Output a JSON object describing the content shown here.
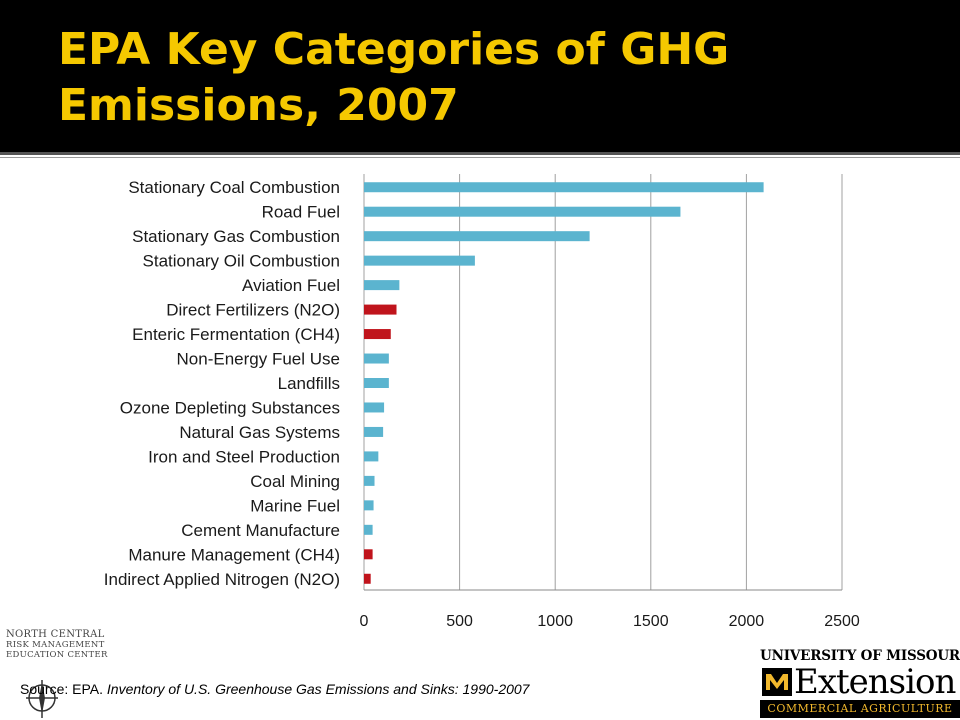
{
  "slide": {
    "title": "EPA Key Categories of GHG Emissions, 2007",
    "source_prefix": "Source: EPA. ",
    "source_italic": "Inventory of U.S. Greenhouse Gas Emissions and Sinks: 1990-2007"
  },
  "colors": {
    "title_bg": "#000000",
    "title_text": "#f5c800",
    "bar_default": "#5bb4cf",
    "bar_agriculture": "#c0141c",
    "grid": "#a0a0a0"
  },
  "chart_data": {
    "type": "bar",
    "orientation": "horizontal",
    "categories": [
      "Stationary Coal Combustion",
      "Road Fuel",
      "Stationary Gas Combustion",
      "Stationary Oil Combustion",
      "Aviation Fuel",
      "Direct Fertilizers (N2O)",
      "Enteric Fermentation  (CH4)",
      "Non-Energy Fuel Use",
      "Landfills",
      "Ozone Depleting Substances",
      "Natural Gas Systems",
      "Iron and Steel Production",
      "Coal Mining",
      "Marine Fuel",
      "Cement Manufacture",
      "Manure Management (CH4)",
      "Indirect Applied Nitrogen (N2O)"
    ],
    "values": [
      2090,
      1655,
      1180,
      580,
      185,
      170,
      140,
      130,
      130,
      105,
      100,
      75,
      55,
      50,
      45,
      45,
      35
    ],
    "highlight": [
      false,
      false,
      false,
      false,
      false,
      true,
      true,
      false,
      false,
      false,
      false,
      false,
      false,
      false,
      false,
      true,
      true
    ],
    "xlim": [
      0,
      2500
    ],
    "xticks": [
      0,
      500,
      1000,
      1500,
      2000,
      2500
    ],
    "grid": true,
    "legend": "none"
  },
  "logos": {
    "ncr_lines": [
      "NORTH CENTRAL",
      "RISK MANAGEMENT",
      "EDUCATION CENTER"
    ],
    "mu_university": "UNIVERSITY OF MISSOURI",
    "mu_extension": "Extension",
    "mu_commercial": "COMMERCIAL AGRICULTURE"
  }
}
